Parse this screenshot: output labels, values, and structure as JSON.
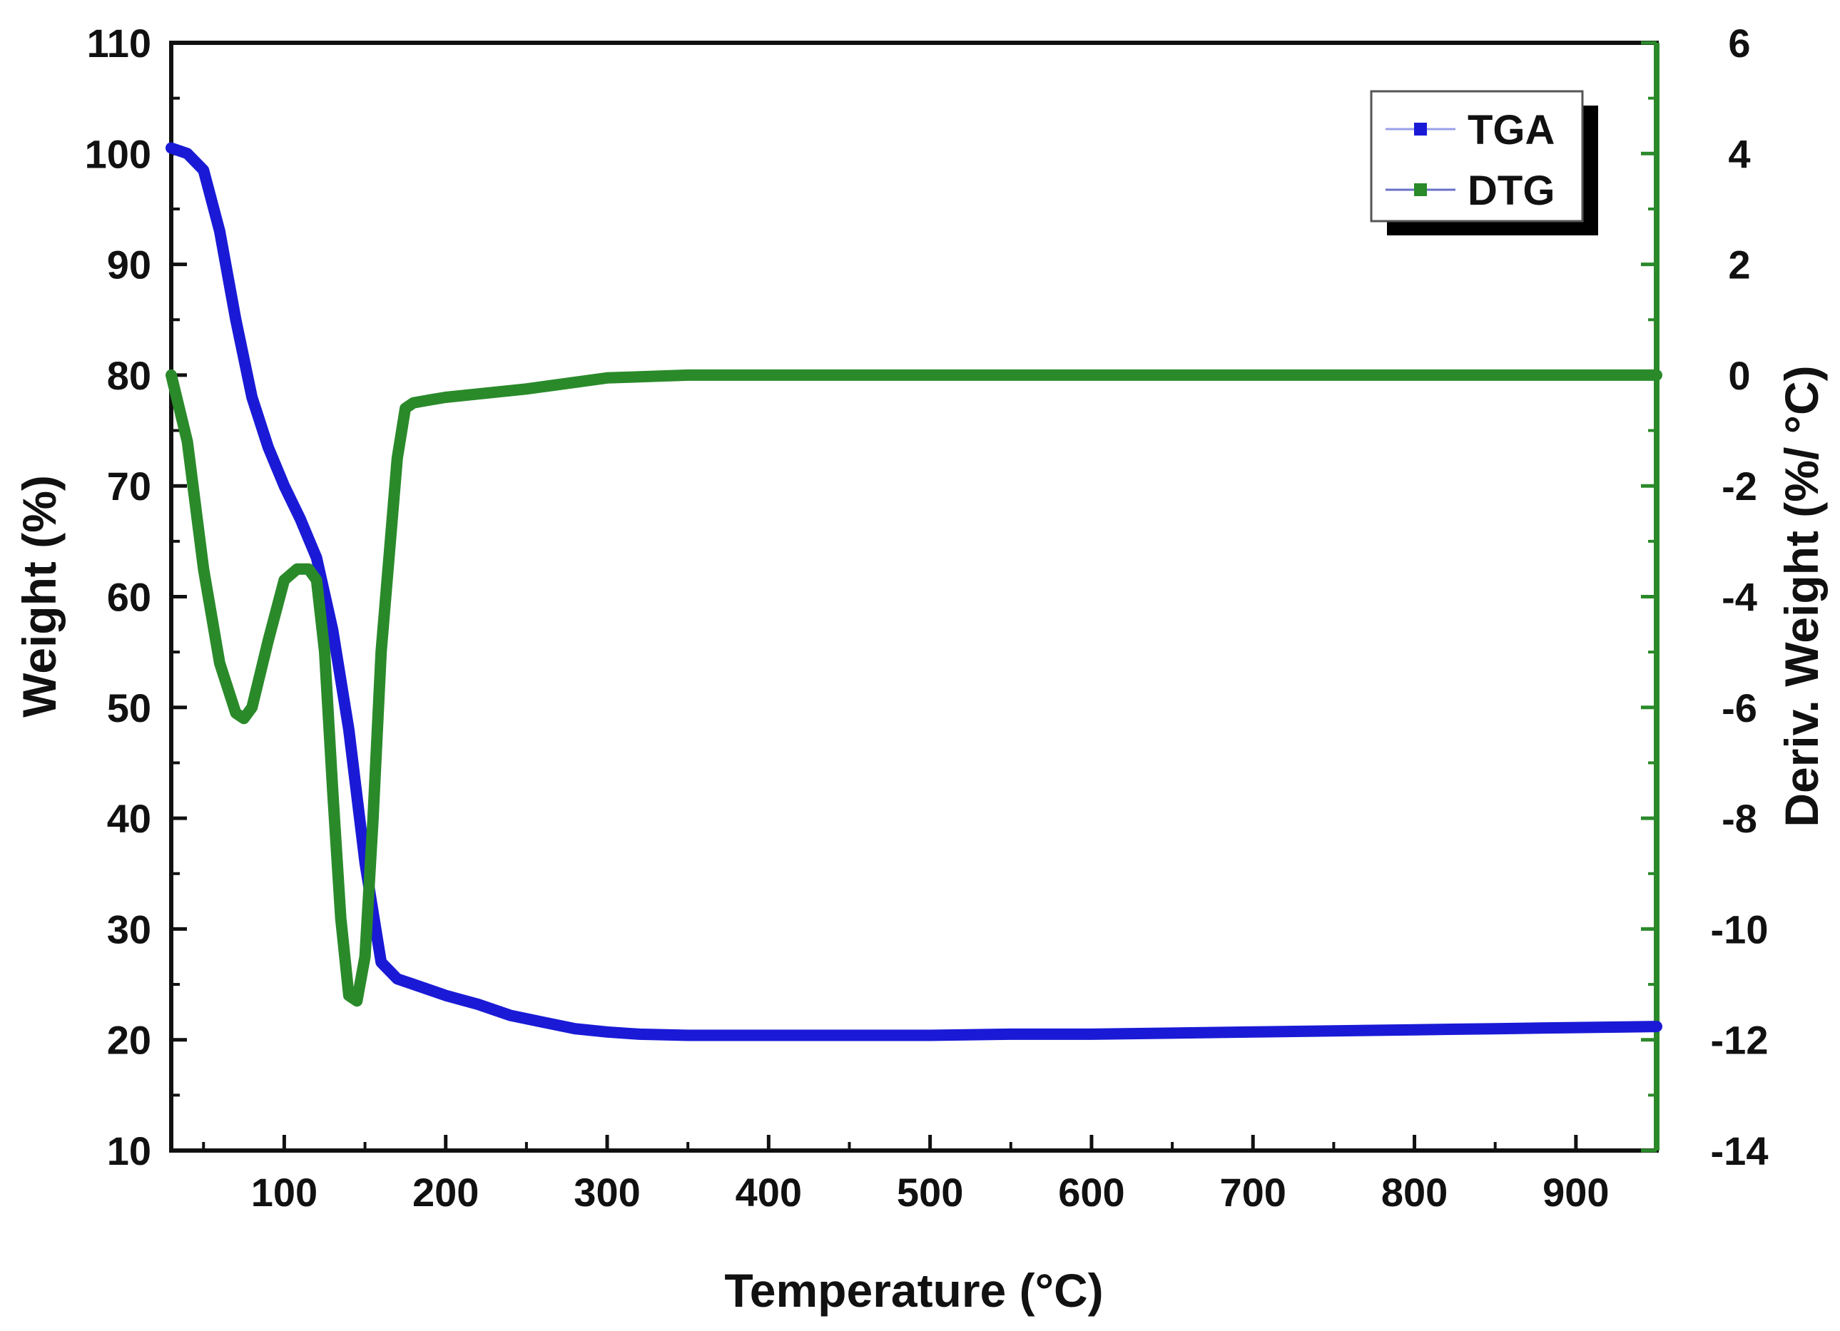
{
  "chart_data": {
    "type": "line",
    "xlabel": "Temperature (°C)",
    "ylabel": "Weight (%)",
    "y2label": "Deriv. Weight (%/ °C)",
    "xlim": [
      30,
      950
    ],
    "ylim": [
      10,
      110
    ],
    "y2lim": [
      -14,
      6
    ],
    "x_ticks": [
      100,
      200,
      300,
      400,
      500,
      600,
      700,
      800,
      900
    ],
    "y_ticks": [
      10,
      20,
      30,
      40,
      50,
      60,
      70,
      80,
      90,
      100,
      110
    ],
    "y2_ticks": [
      -14,
      -12,
      -10,
      -8,
      -6,
      -4,
      -2,
      0,
      2,
      4,
      6
    ],
    "legend_position": "top-right",
    "series": [
      {
        "name": "TGA",
        "axis": "left",
        "color": "#1a1ad6",
        "x": [
          30,
          40,
          50,
          60,
          70,
          80,
          90,
          100,
          110,
          120,
          130,
          140,
          150,
          160,
          170,
          180,
          200,
          220,
          240,
          260,
          280,
          300,
          320,
          350,
          400,
          450,
          500,
          550,
          600,
          650,
          700,
          750,
          800,
          850,
          900,
          950
        ],
        "y": [
          100.5,
          100.0,
          98.5,
          93.0,
          85.0,
          78.0,
          73.5,
          70.0,
          67.0,
          63.5,
          57.0,
          48.0,
          36.0,
          27.0,
          25.5,
          25.0,
          24.0,
          23.2,
          22.2,
          21.6,
          21.0,
          20.7,
          20.5,
          20.4,
          20.4,
          20.4,
          20.4,
          20.5,
          20.5,
          20.6,
          20.7,
          20.8,
          20.9,
          21.0,
          21.1,
          21.2
        ]
      },
      {
        "name": "DTG",
        "axis": "right",
        "color": "#2a8a2a",
        "x": [
          30,
          40,
          50,
          60,
          70,
          75,
          80,
          90,
          100,
          108,
          115,
          120,
          125,
          130,
          135,
          140,
          145,
          150,
          155,
          160,
          170,
          175,
          180,
          190,
          200,
          250,
          300,
          350,
          400,
          450,
          500,
          600,
          700,
          800,
          900,
          950
        ],
        "y": [
          0.0,
          -1.2,
          -3.5,
          -5.2,
          -6.1,
          -6.2,
          -6.0,
          -4.8,
          -3.7,
          -3.5,
          -3.5,
          -3.7,
          -5.0,
          -7.5,
          -9.8,
          -11.2,
          -11.3,
          -10.5,
          -8.0,
          -5.0,
          -1.5,
          -0.6,
          -0.5,
          -0.45,
          -0.4,
          -0.25,
          -0.05,
          0.0,
          0.0,
          0.0,
          0.0,
          0.0,
          0.0,
          0.0,
          0.0,
          0.0
        ]
      }
    ]
  }
}
